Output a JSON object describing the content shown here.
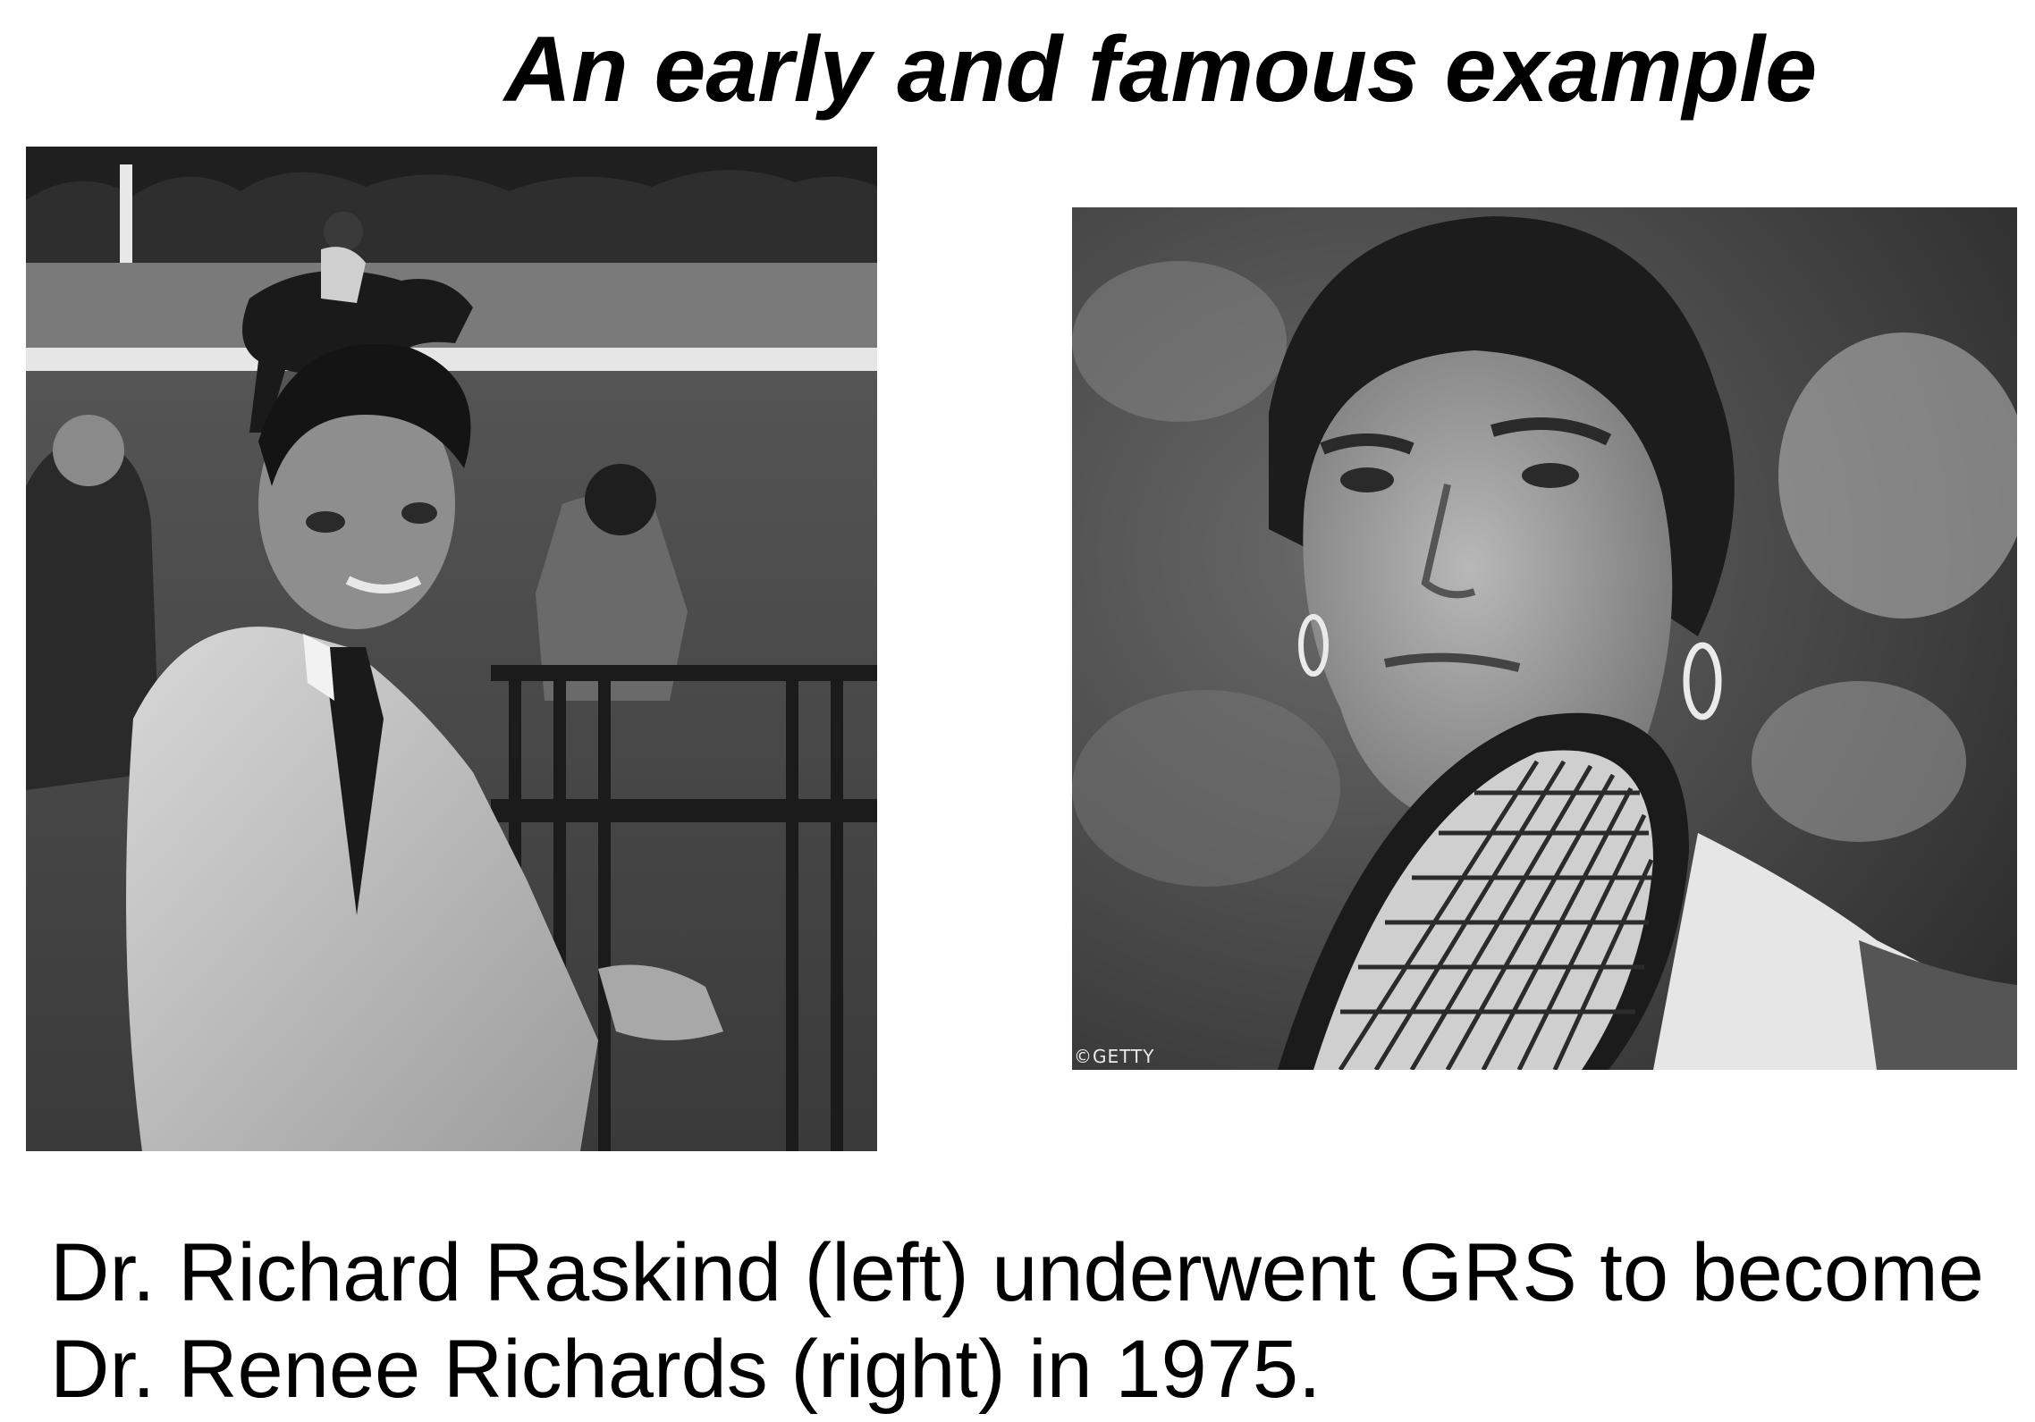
{
  "slide": {
    "title": "An early and famous example",
    "caption_lines": [
      "Dr. Richard Raskind (left) underwent GRS to become",
      "Dr. Renee Richards (right) in 1975."
    ]
  },
  "photos": {
    "left": {
      "subject": "man in suit at racetrack"
    },
    "right": {
      "subject": "woman with tennis racket",
      "watermark": "©GETTY"
    }
  }
}
